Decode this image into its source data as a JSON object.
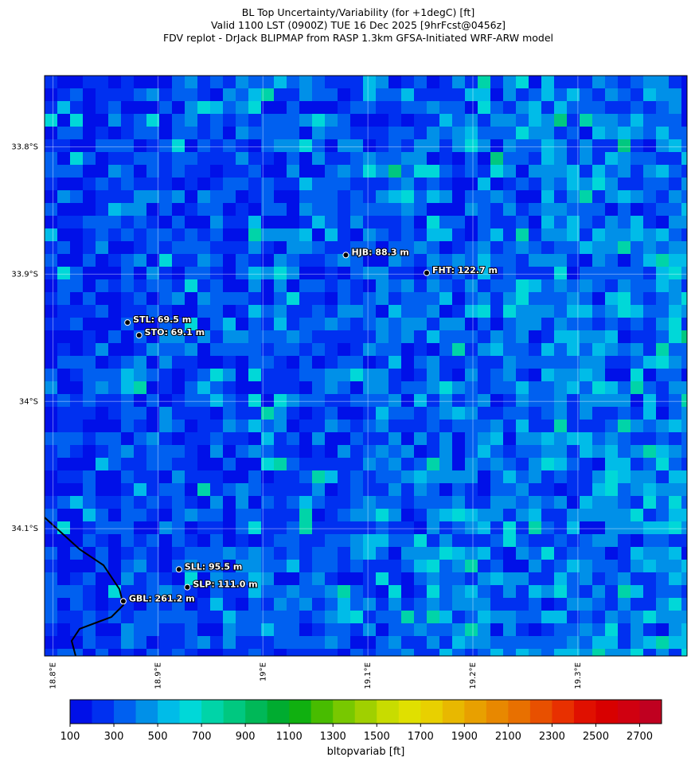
{
  "title": [
    "BL Top Uncertainty/Variability (for +1degC) [ft]",
    "Valid 1100 LST (0900Z) TUE 16 Dec 2025 [9hrFcst@0456z]",
    "FDV replot - DrJack BLIPMAP from RASP 1.3km GFSA-Initiated WRF-ARW model"
  ],
  "map": {
    "lonlim": [
      18.792,
      19.404
    ],
    "latlim": [
      -34.2,
      -33.744
    ],
    "latticks": [
      {
        "value": -33.8,
        "label": "33.8°S"
      },
      {
        "value": -33.9,
        "label": "33.9°S"
      },
      {
        "value": -34.0,
        "label": "34°S"
      },
      {
        "value": -34.1,
        "label": "34.1°S"
      }
    ],
    "lonticks": [
      {
        "value": 18.8,
        "label": "18.8°E"
      },
      {
        "value": 18.9,
        "label": "18.9°E"
      },
      {
        "value": 19.0,
        "label": "19°E"
      },
      {
        "value": 19.1,
        "label": "19.1°E"
      },
      {
        "value": 19.2,
        "label": "19.2°E"
      },
      {
        "value": 19.3,
        "label": "19.3°E"
      }
    ],
    "stations": [
      {
        "label": "HJB: 88.3 m",
        "lon": 19.079,
        "lat": -33.885
      },
      {
        "label": "FHT: 122.7 m",
        "lon": 19.156,
        "lat": -33.899
      },
      {
        "label": "STL: 69.5 m",
        "lon": 18.871,
        "lat": -33.938
      },
      {
        "label": "STO: 69.1 m",
        "lon": 18.882,
        "lat": -33.948
      },
      {
        "label": "SLL: 95.5 m",
        "lon": 18.92,
        "lat": -34.132
      },
      {
        "label": "SLP: 111.0 m",
        "lon": 18.928,
        "lat": -34.146
      },
      {
        "label": "GBL: 261.2 m",
        "lon": 18.867,
        "lat": -34.157
      }
    ]
  },
  "colorbar": {
    "label": "bltopvariab [ft]",
    "lim": [
      100,
      2800
    ],
    "ticks": [
      100,
      300,
      500,
      700,
      900,
      1100,
      1300,
      1500,
      1700,
      1900,
      2100,
      2300,
      2500,
      2700
    ],
    "colors": [
      "#0010e8",
      "#0030f0",
      "#0060f0",
      "#0090e8",
      "#00bce8",
      "#00d8d8",
      "#00d4a8",
      "#00c880",
      "#00b858",
      "#00ac30",
      "#10b010",
      "#48bc00",
      "#78c800",
      "#a0d000",
      "#c8dc00",
      "#e0e000",
      "#e8d000",
      "#e8b800",
      "#e8a000",
      "#e88800",
      "#e87000",
      "#e85000",
      "#e83000",
      "#e01000",
      "#d80000",
      "#d00010",
      "#c00020"
    ]
  }
}
